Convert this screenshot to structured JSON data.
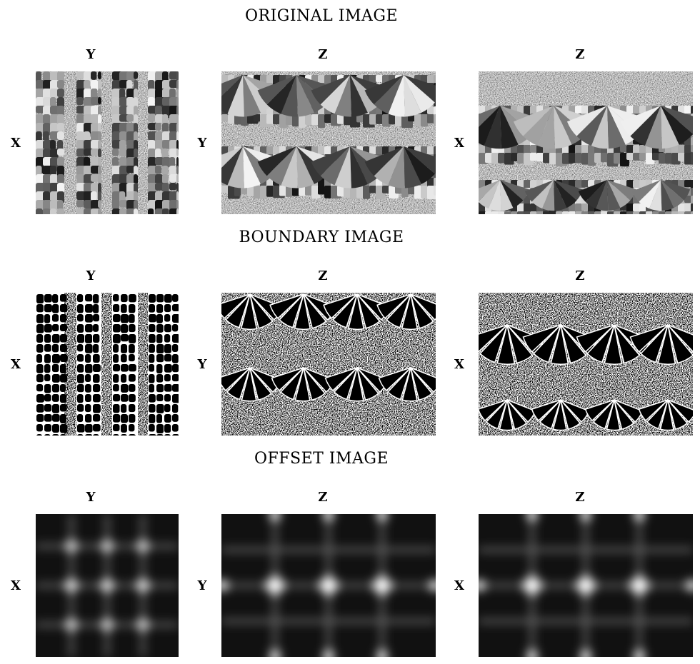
{
  "sections": [
    {
      "title": "ORIGINAL IMAGE",
      "panels": [
        {
          "top_label": "Y",
          "side_label": "X"
        },
        {
          "top_label": "Z",
          "side_label": "Y"
        },
        {
          "top_label": "Z",
          "side_label": "X"
        }
      ]
    },
    {
      "title": "BOUNDARY IMAGE",
      "panels": [
        {
          "top_label": "Y",
          "side_label": "X"
        },
        {
          "top_label": "Z",
          "side_label": "Y"
        },
        {
          "top_label": "Z",
          "side_label": "X"
        }
      ]
    },
    {
      "title": "OFFSET IMAGE",
      "panels": [
        {
          "top_label": "Y",
          "side_label": "X"
        },
        {
          "top_label": "Z",
          "side_label": "Y"
        },
        {
          "top_label": "Z",
          "side_label": "X"
        }
      ]
    }
  ],
  "colors": {
    "background": "#ffffff",
    "text": "#000000"
  }
}
